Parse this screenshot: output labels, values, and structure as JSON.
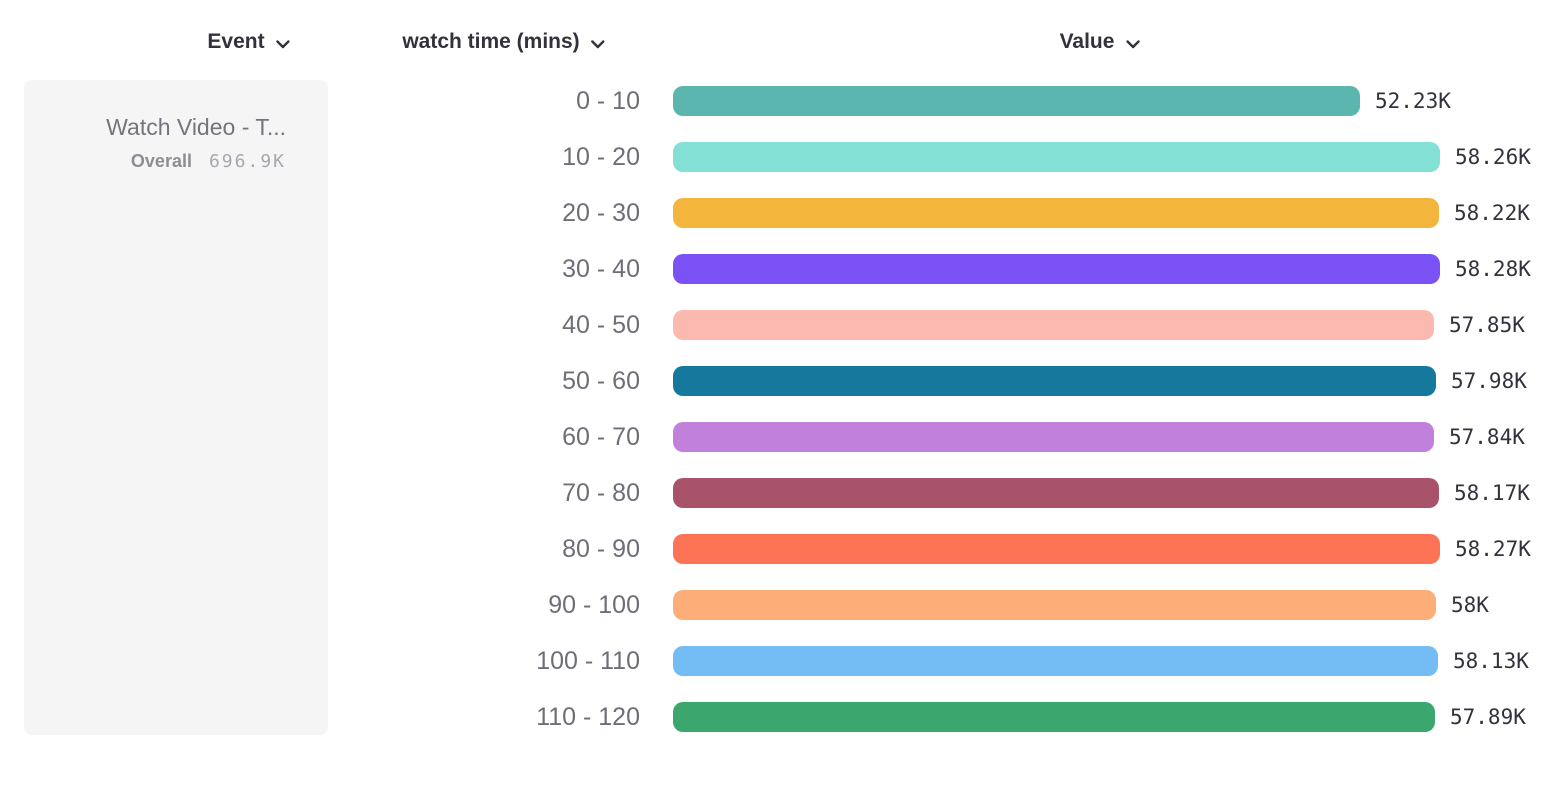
{
  "header": {
    "columns": [
      {
        "id": "event",
        "label": "Event"
      },
      {
        "id": "breakdown",
        "label": "watch time (mins)"
      },
      {
        "id": "value",
        "label": "Value"
      }
    ]
  },
  "event_card": {
    "title": "Watch Video - T...",
    "overall_label": "Overall",
    "overall_value": "696.9K"
  },
  "chart_data": {
    "type": "bar",
    "orientation": "horizontal",
    "title": "",
    "xlabel": "Value",
    "ylabel": "watch time (mins)",
    "xlim": [
      0,
      58280
    ],
    "grid": false,
    "legend": "none",
    "categories": [
      "0 - 10",
      "10 - 20",
      "20 - 30",
      "30 - 40",
      "40 - 50",
      "50 - 60",
      "60 - 70",
      "70 - 80",
      "80 - 90",
      "90 - 100",
      "100 - 110",
      "110 - 120"
    ],
    "values": [
      52230,
      58260,
      58220,
      58280,
      57850,
      57980,
      57840,
      58170,
      58270,
      58000,
      58130,
      57890
    ],
    "value_labels": [
      "52.23K",
      "58.26K",
      "58.22K",
      "58.28K",
      "57.85K",
      "57.98K",
      "57.84K",
      "58.17K",
      "58.27K",
      "58K",
      "58.13K",
      "57.89K"
    ],
    "colors": [
      "#5AB6AE",
      "#82E0D5",
      "#F3B53C",
      "#7A52F6",
      "#FCB9B0",
      "#14799C",
      "#C180DB",
      "#A9536B",
      "#FC7355",
      "#FDAE78",
      "#73BDF4",
      "#3BA76F"
    ]
  }
}
